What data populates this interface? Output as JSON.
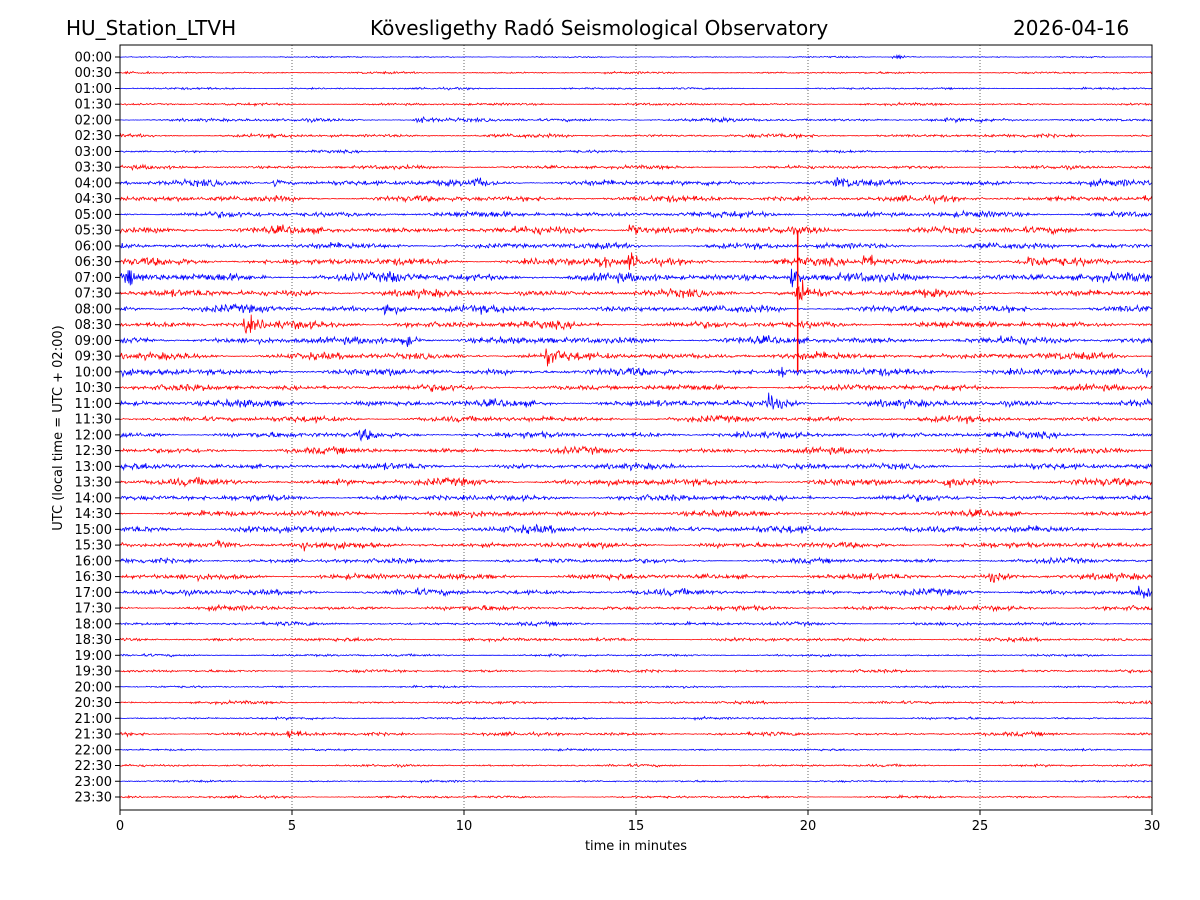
{
  "header": {
    "station": "HU_Station_LTVH",
    "observatory": "Kövesligethy Radó Seismological Observatory",
    "date": "2026-04-16"
  },
  "chart_data": {
    "type": "line",
    "title": "Kövesligethy Radó Seismological Observatory",
    "xlabel": "time in minutes",
    "ylabel": "UTC (local time = UTC + 02:00)",
    "xlim": [
      0,
      30
    ],
    "xticks": [
      "0",
      "5",
      "10",
      "15",
      "20",
      "25",
      "30"
    ],
    "xtick_values": [
      0,
      5,
      10,
      15,
      20,
      25,
      30
    ],
    "grid": "vertical dotted at x ticks",
    "colors": [
      "#0000ff",
      "#ff0000"
    ],
    "rows": [
      "00:00",
      "00:30",
      "01:00",
      "01:30",
      "02:00",
      "02:30",
      "03:00",
      "03:30",
      "04:00",
      "04:30",
      "05:00",
      "05:30",
      "06:00",
      "06:30",
      "07:00",
      "07:30",
      "08:00",
      "08:30",
      "09:00",
      "09:30",
      "10:00",
      "10:30",
      "11:00",
      "11:30",
      "12:00",
      "12:30",
      "13:00",
      "13:30",
      "14:00",
      "14:30",
      "15:00",
      "15:30",
      "16:00",
      "16:30",
      "17:00",
      "17:30",
      "18:00",
      "18:30",
      "19:00",
      "19:30",
      "20:00",
      "20:30",
      "21:00",
      "21:30",
      "22:00",
      "22:30",
      "23:00",
      "23:30"
    ],
    "noise_level": [
      0.5,
      0.8,
      0.8,
      1,
      1.5,
      1.5,
      1,
      1.5,
      2.5,
      2.5,
      2.5,
      3,
      2.5,
      3,
      3.5,
      3,
      3,
      3,
      3,
      3,
      3,
      2.5,
      3,
      2.5,
      2.5,
      2.5,
      2.5,
      3,
      2.5,
      2.5,
      3,
      2.5,
      2,
      2.5,
      2.5,
      2,
      1.5,
      1.5,
      1,
      1.2,
      0.8,
      1.2,
      1,
      1.5,
      0.8,
      1,
      0.8,
      1
    ],
    "events": [
      {
        "row": 0,
        "minute": 22.5,
        "amplitude": 3
      },
      {
        "row": 4,
        "minute": 8.6,
        "amplitude": 4
      },
      {
        "row": 8,
        "minute": 4.5,
        "amplitude": 4
      },
      {
        "row": 8,
        "minute": 10.3,
        "amplitude": 4
      },
      {
        "row": 8,
        "minute": 20.8,
        "amplitude": 4
      },
      {
        "row": 11,
        "minute": 14.8,
        "amplitude": 6
      },
      {
        "row": 13,
        "minute": 13.9,
        "amplitude": 6
      },
      {
        "row": 13,
        "minute": 14.8,
        "amplitude": 6
      },
      {
        "row": 13,
        "minute": 21.6,
        "amplitude": 7
      },
      {
        "row": 13,
        "minute": 26.3,
        "amplitude": 6
      },
      {
        "row": 14,
        "minute": 0.2,
        "amplitude": 6
      },
      {
        "row": 14,
        "minute": 7.8,
        "amplitude": 5
      },
      {
        "row": 14,
        "minute": 19.5,
        "amplitude": 9
      },
      {
        "row": 15,
        "minute": 19.7,
        "amplitude": 14
      },
      {
        "row": 16,
        "minute": 7.7,
        "amplitude": 7
      },
      {
        "row": 17,
        "minute": 3.6,
        "amplitude": 8
      },
      {
        "row": 18,
        "minute": 8.2,
        "amplitude": 7
      },
      {
        "row": 19,
        "minute": 12.4,
        "amplitude": 8
      },
      {
        "row": 20,
        "minute": 19.2,
        "amplitude": 5
      },
      {
        "row": 22,
        "minute": 18.8,
        "amplitude": 8
      },
      {
        "row": 24,
        "minute": 7,
        "amplitude": 5
      },
      {
        "row": 27,
        "minute": 24,
        "amplitude": 5
      },
      {
        "row": 31,
        "minute": 2.8,
        "amplitude": 4
      },
      {
        "row": 31,
        "minute": 5.3,
        "amplitude": 4
      },
      {
        "row": 33,
        "minute": 25.3,
        "amplitude": 4
      },
      {
        "row": 34,
        "minute": 29.6,
        "amplitude": 5
      },
      {
        "row": 43,
        "minute": 4.9,
        "amplitude": 4
      }
    ],
    "spike": {
      "minute": 19.7,
      "from_row": 11,
      "to_row": 20
    }
  }
}
